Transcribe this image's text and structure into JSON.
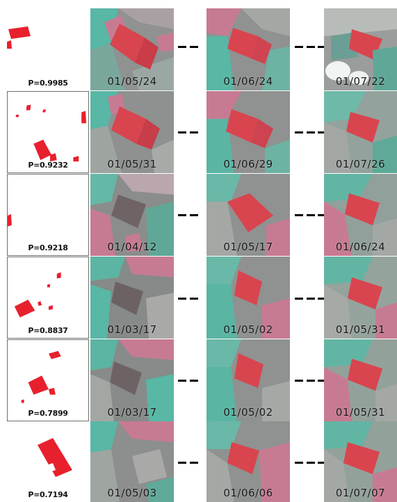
{
  "rows": [
    {
      "p": "P=0.9985",
      "dates": [
        "01/05/24",
        "01/06/24",
        "01/07/22"
      ]
    },
    {
      "p": "P=0.9232",
      "dates": [
        "01/05/31",
        "01/06/29",
        "01/07/26"
      ]
    },
    {
      "p": "P=0.9218",
      "dates": [
        "01/04/12",
        "01/05/17",
        "01/06/24"
      ]
    },
    {
      "p": "P=0.8837",
      "dates": [
        "01/03/17",
        "01/05/02",
        "01/05/31"
      ]
    },
    {
      "p": "P=0.7899",
      "dates": [
        "01/03/17",
        "01/05/02",
        "01/05/31"
      ]
    },
    {
      "p": "P=0.7194",
      "dates": [
        "01/05/03",
        "01/06/06",
        "01/07/07"
      ]
    }
  ],
  "colors": {
    "mask_red": "#e8202e",
    "field_red": "#d8454f",
    "teal": "#58b7a5",
    "pink": "#c77b92",
    "gray": "#8f9290",
    "connector": "#000000"
  }
}
